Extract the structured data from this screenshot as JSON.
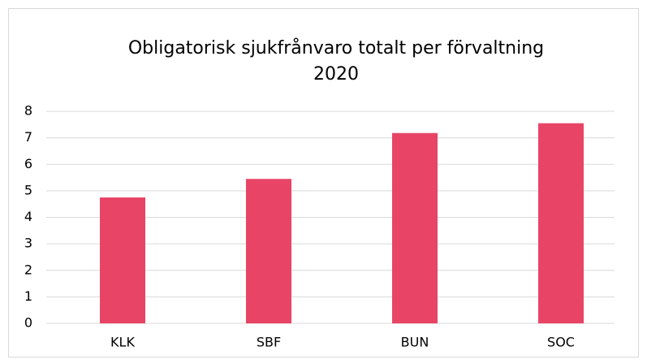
{
  "chart_data": {
    "type": "bar",
    "title": "Obligatorisk sjukfrånvaro totalt per förvaltning",
    "subtitle": "2020",
    "categories": [
      "KLK",
      "SBF",
      "BUN",
      "SOC"
    ],
    "values": [
      4.75,
      5.45,
      7.18,
      7.55
    ],
    "color": "#e84566",
    "ylim": [
      0,
      8
    ],
    "yticks": [
      0,
      1,
      2,
      3,
      4,
      5,
      6,
      7,
      8
    ],
    "grid": true
  }
}
